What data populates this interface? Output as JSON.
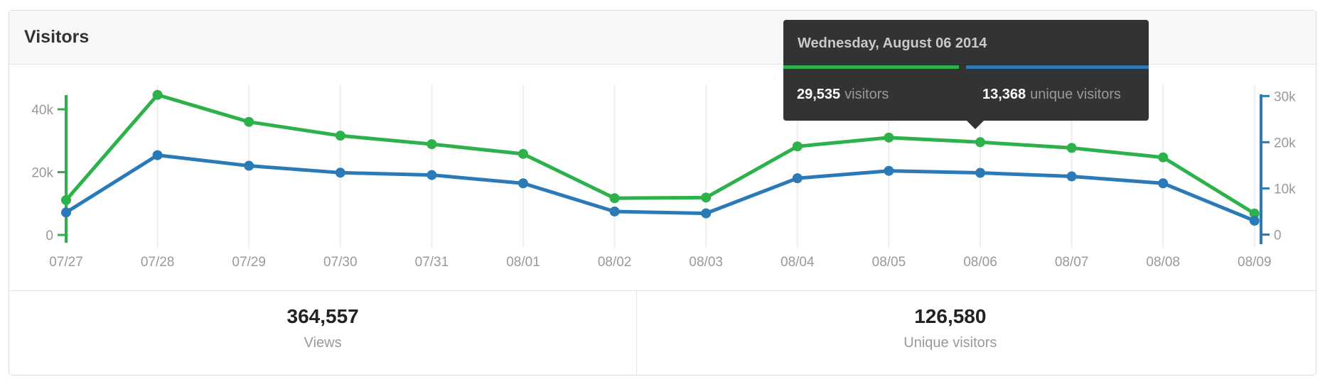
{
  "panel": {
    "title": "Visitors",
    "stats": [
      {
        "value": "364,557",
        "label": "Views"
      },
      {
        "value": "126,580",
        "label": "Unique visitors"
      }
    ]
  },
  "tooltip": {
    "date": "Wednesday, August 06 2014",
    "visitors_value": "29,535",
    "visitors_label": "visitors",
    "unique_value": "13,368",
    "unique_label": "unique visitors"
  },
  "chart_data": {
    "type": "line",
    "x": [
      "07/27",
      "07/28",
      "07/29",
      "07/30",
      "07/31",
      "08/01",
      "08/02",
      "08/03",
      "08/04",
      "08/05",
      "08/06",
      "08/07",
      "08/08",
      "08/09"
    ],
    "series": [
      {
        "name": "visitors",
        "axis": "left",
        "color": "#2db14a",
        "values": [
          11100,
          44600,
          36000,
          31600,
          28900,
          25800,
          11700,
          11900,
          28200,
          31000,
          29535,
          27700,
          24700,
          6800
        ]
      },
      {
        "name": "unique visitors",
        "axis": "right",
        "color": "#2a7ab7",
        "values": [
          4800,
          17200,
          14900,
          13400,
          12900,
          11100,
          5000,
          4600,
          12200,
          13800,
          13368,
          12600,
          11100,
          3000
        ]
      }
    ],
    "left_axis": {
      "range": [
        0,
        45000
      ],
      "ticks": [
        0,
        20000,
        40000
      ],
      "tick_labels": [
        "0",
        "20k",
        "40k"
      ],
      "color": "#2db14a"
    },
    "right_axis": {
      "range": [
        0,
        30800
      ],
      "ticks": [
        0,
        10000,
        20000,
        30000
      ],
      "tick_labels": [
        "0",
        "10k",
        "20k",
        "30k"
      ],
      "color": "#2a7ab7"
    },
    "grid": "vertical-only",
    "legend": "none",
    "highlighted_x": "08/06",
    "title": "Visitors"
  },
  "colors": {
    "grid": "#eeeeee",
    "axis_text": "#999999",
    "tooltip_bg": "#333333"
  }
}
